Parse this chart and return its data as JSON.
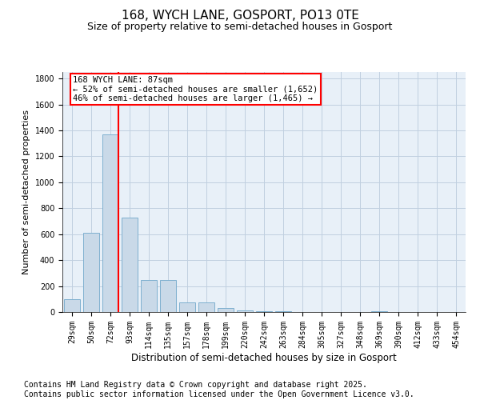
{
  "title_line1": "168, WYCH LANE, GOSPORT, PO13 0TE",
  "title_line2": "Size of property relative to semi-detached houses in Gosport",
  "xlabel": "Distribution of semi-detached houses by size in Gosport",
  "ylabel": "Number of semi-detached properties",
  "bin_labels": [
    "29sqm",
    "50sqm",
    "72sqm",
    "93sqm",
    "114sqm",
    "135sqm",
    "157sqm",
    "178sqm",
    "199sqm",
    "220sqm",
    "242sqm",
    "263sqm",
    "284sqm",
    "305sqm",
    "327sqm",
    "348sqm",
    "369sqm",
    "390sqm",
    "412sqm",
    "433sqm",
    "454sqm"
  ],
  "bar_values": [
    100,
    610,
    1370,
    730,
    245,
    245,
    75,
    75,
    30,
    10,
    5,
    5,
    0,
    0,
    0,
    0,
    5,
    0,
    0,
    0,
    0
  ],
  "bar_color": "#c9d9e8",
  "bar_edgecolor": "#7fb0d0",
  "grid_color": "#c0cfe0",
  "background_color": "#e8f0f8",
  "property_line_label": "168 WYCH LANE: 87sqm",
  "annotation_line1": "← 52% of semi-detached houses are smaller (1,652)",
  "annotation_line2": "46% of semi-detached houses are larger (1,465) →",
  "annotation_box_color": "white",
  "annotation_box_edgecolor": "red",
  "vline_color": "red",
  "vline_x": 2.4,
  "ylim": [
    0,
    1850
  ],
  "yticks": [
    0,
    200,
    400,
    600,
    800,
    1000,
    1200,
    1400,
    1600,
    1800
  ],
  "footnote_line1": "Contains HM Land Registry data © Crown copyright and database right 2025.",
  "footnote_line2": "Contains public sector information licensed under the Open Government Licence v3.0.",
  "footnote_fontsize": 7,
  "title1_fontsize": 11,
  "title2_fontsize": 9,
  "xlabel_fontsize": 8.5,
  "ylabel_fontsize": 8,
  "tick_fontsize": 7,
  "annot_fontsize": 7.5
}
